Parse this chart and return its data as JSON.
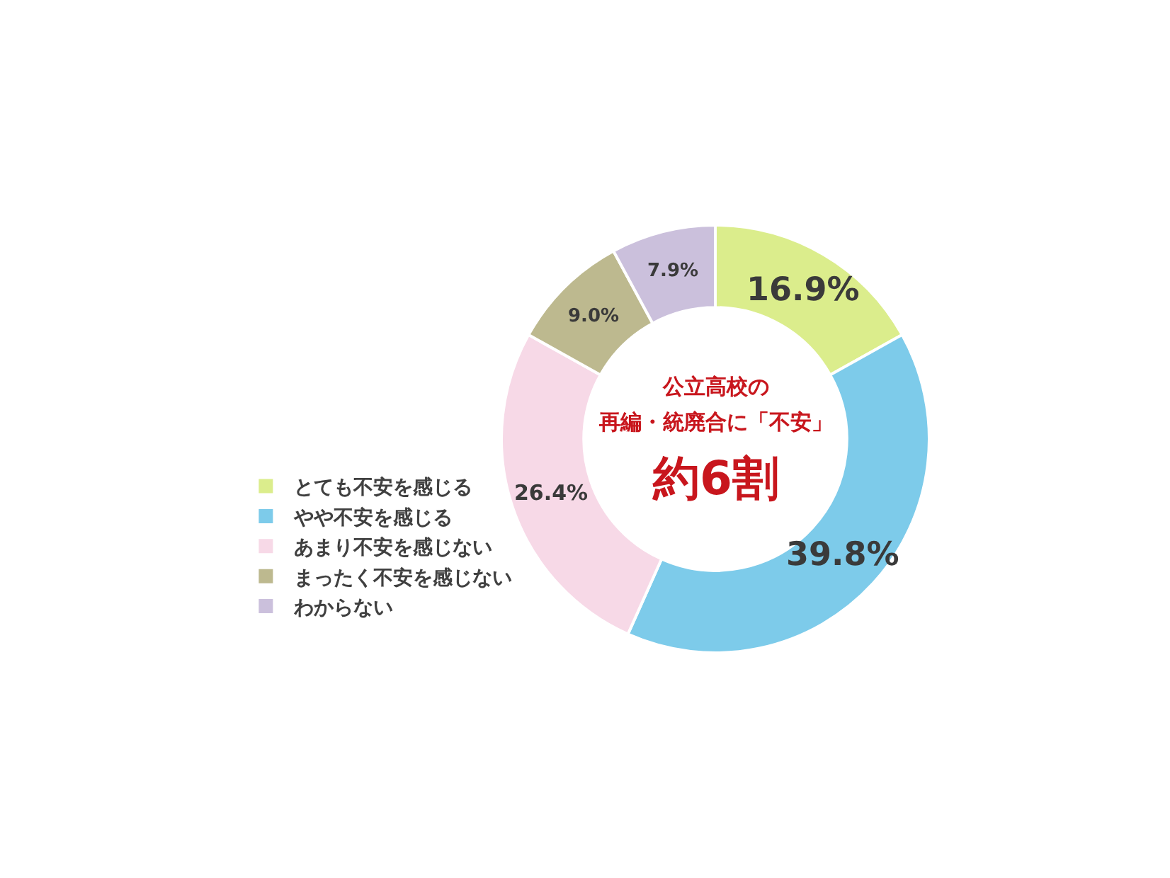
{
  "chart_data": {
    "type": "donut",
    "categories": [
      "とても不安を感じる",
      "やや不安を感じる",
      "あまり不安を感じない",
      "まったく不安を感じない",
      "わからない"
    ],
    "values": [
      16.9,
      39.8,
      26.4,
      9.0,
      7.9
    ],
    "colors": [
      "#dbed8c",
      "#7dcbea",
      "#f7d9e7",
      "#bdb98f",
      "#cbc0dc"
    ],
    "value_labels": [
      "16.9%",
      "39.8%",
      "26.4%",
      "9.0%",
      "7.9%"
    ],
    "annotations": [
      "公立高校の",
      "再編・統廃合に「不安」",
      "約6割"
    ],
    "legend": "left"
  }
}
